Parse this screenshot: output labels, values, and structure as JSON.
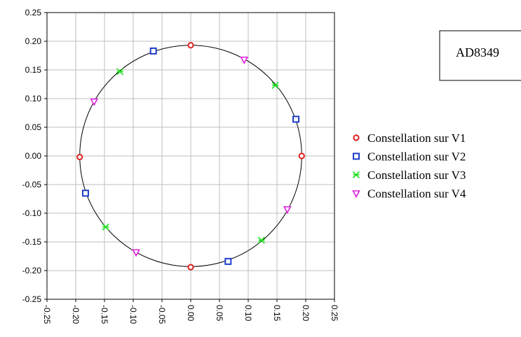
{
  "chart_data": {
    "type": "scatter",
    "title": "AD8349",
    "xlim": [
      -0.25,
      0.25
    ],
    "ylim": [
      -0.25,
      0.25
    ],
    "x_ticks": [
      "-0.25",
      "-0.20",
      "-0.15",
      "-0.10",
      "-0.05",
      "0.00",
      "0.05",
      "0.10",
      "0.15",
      "0.20",
      "0.25"
    ],
    "y_ticks": [
      "0.25",
      "0.20",
      "0.15",
      "0.10",
      "0.05",
      "0.00",
      "-0.05",
      "-0.10",
      "-0.15",
      "-0.20",
      "-0.25"
    ],
    "x_tick_values": [
      -0.25,
      -0.2,
      -0.15,
      -0.1,
      -0.05,
      0,
      0.05,
      0.1,
      0.15,
      0.2,
      0.25
    ],
    "y_tick_values": [
      0.25,
      0.2,
      0.15,
      0.1,
      0.05,
      0,
      -0.05,
      -0.1,
      -0.15,
      -0.2,
      -0.25
    ],
    "grid": true,
    "legend_position": "right",
    "circle": {
      "center": [
        0,
        0
      ],
      "radius": 0.193
    },
    "series": [
      {
        "name": "Constellation sur V1",
        "color": "#e02020",
        "marker": "circle",
        "points": [
          [
            0.0,
            0.193
          ],
          [
            0.193,
            0.0
          ],
          [
            0.0,
            -0.194
          ],
          [
            -0.193,
            -0.002
          ]
        ]
      },
      {
        "name": "Constellation sur V2",
        "color": "#1f3ec8",
        "marker": "square",
        "points": [
          [
            -0.065,
            0.183
          ],
          [
            0.183,
            0.064
          ],
          [
            0.065,
            -0.184
          ],
          [
            -0.183,
            -0.065
          ]
        ]
      },
      {
        "name": "Constellation sur V3",
        "color": "#22dd22",
        "marker": "asterisk",
        "points": [
          [
            -0.123,
            0.147
          ],
          [
            0.147,
            0.123
          ],
          [
            0.123,
            -0.147
          ],
          [
            -0.148,
            -0.124
          ]
        ]
      },
      {
        "name": "Constellation sur V4",
        "color": "#e020e0",
        "marker": "triangle-down",
        "points": [
          [
            0.093,
            0.168
          ],
          [
            0.168,
            -0.093
          ],
          [
            -0.095,
            -0.168
          ],
          [
            -0.168,
            0.095
          ]
        ]
      }
    ]
  }
}
